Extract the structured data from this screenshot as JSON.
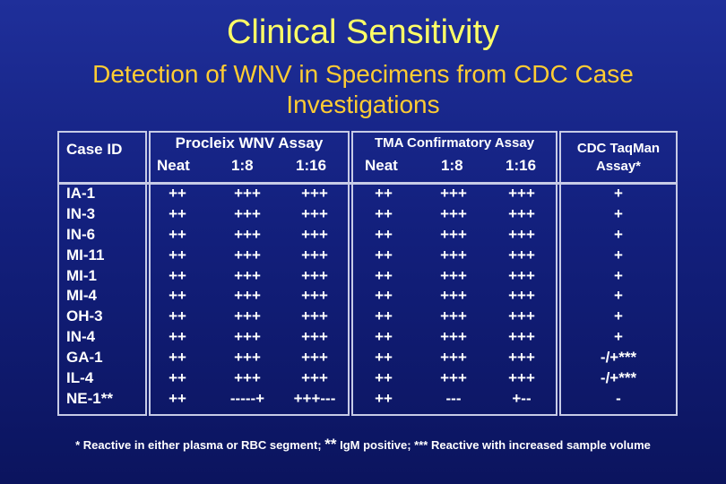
{
  "title": "Clinical Sensitivity",
  "subtitle": "Detection of WNV in Specimens from CDC Case Investigations",
  "table": {
    "headers": {
      "case_id": "Case ID",
      "procleix": "Procleix WNV Assay",
      "tma": "TMA Confirmatory Assay",
      "cdc_line1": "CDC TaqMan",
      "cdc_line2": "Assay*",
      "neat": "Neat",
      "d18": "1:8",
      "d116": "1:16"
    },
    "columns": {
      "case_id": [
        "IA-1",
        "IN-3",
        "IN-6",
        "MI-11",
        "MI-1",
        "MI-4",
        "OH-3",
        "IN-4",
        "GA-1",
        "IL-4",
        "NE-1**"
      ],
      "procleix_neat": [
        "++",
        "++",
        "++",
        "++",
        "++",
        "++",
        "++",
        "++",
        "++",
        "++",
        "++"
      ],
      "procleix_1_8": [
        "+++",
        "+++",
        "+++",
        "+++",
        "+++",
        "+++",
        "+++",
        "+++",
        "+++",
        "+++",
        "-----+"
      ],
      "procleix_1_16": [
        "+++",
        "+++",
        "+++",
        "+++",
        "+++",
        "+++",
        "+++",
        "+++",
        "+++",
        "+++",
        "+++---"
      ],
      "tma_neat": [
        "++",
        "++",
        "++",
        "++",
        "++",
        "++",
        "++",
        "++",
        "++",
        "++",
        "++"
      ],
      "tma_1_8": [
        "+++",
        "+++",
        "+++",
        "+++",
        "+++",
        "+++",
        "+++",
        "+++",
        "+++",
        "+++",
        "---"
      ],
      "tma_1_16": [
        "+++",
        "+++",
        "+++",
        "+++",
        "+++",
        "+++",
        "+++",
        "+++",
        "+++",
        "+++",
        "+--"
      ],
      "cdc_taqman": [
        "+",
        "+",
        "+",
        "+",
        "+",
        "+",
        "+",
        "+",
        "-/+***",
        "-/+***",
        "-"
      ]
    }
  },
  "footnote": {
    "part1": "* Reactive in either plasma or RBC segment; ",
    "stars": "**",
    "part2": " IgM positive; *** Reactive with increased sample volume"
  }
}
